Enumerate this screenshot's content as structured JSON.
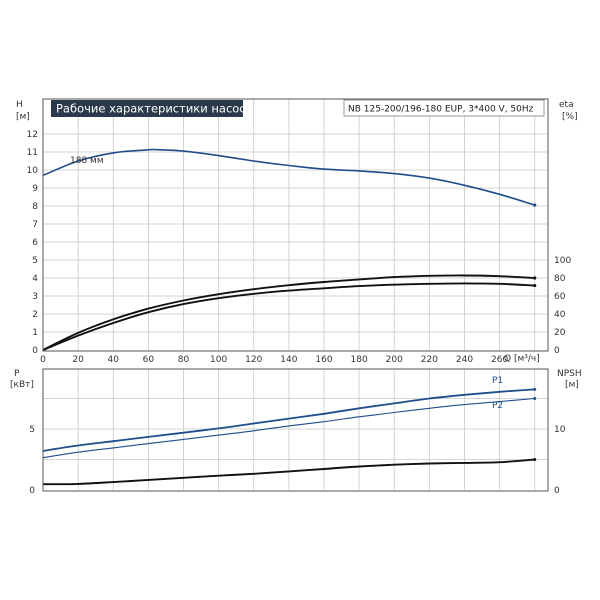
{
  "header": {
    "title": "Рабочие характеристики насоса",
    "model": "NB 125-200/196-180 EUP, 3*400 V, 50Hz"
  },
  "chart_data": [
    {
      "type": "line",
      "name": "head-efficiency",
      "left_axis": {
        "label": "H",
        "unit": "[м]",
        "ticks": [
          "0",
          "1",
          "2",
          "3",
          "4",
          "5",
          "6",
          "7",
          "8",
          "9",
          "10",
          "11",
          "12"
        ],
        "range": [
          0,
          13
        ]
      },
      "right_axis": {
        "label": "eta",
        "unit": "[%]",
        "ticks": [
          "0",
          "20",
          "40",
          "60",
          "80",
          "100"
        ],
        "range": [
          0,
          100
        ]
      },
      "x_axis": {
        "label": "Q [м³/ч]",
        "ticks": [
          "0",
          "20",
          "40",
          "60",
          "80",
          "100",
          "120",
          "140",
          "160",
          "180",
          "200",
          "220",
          "240",
          "260"
        ],
        "range": [
          0,
          290
        ]
      },
      "grid": true,
      "series": [
        {
          "id": "head",
          "name": "188 мм",
          "color": "#1f4e8c",
          "axis": "left",
          "x": [
            0,
            20,
            40,
            60,
            65,
            80,
            100,
            120,
            140,
            160,
            180,
            200,
            220,
            240,
            260,
            280
          ],
          "y": [
            9.7,
            10.5,
            10.95,
            11.12,
            11.13,
            11.05,
            10.8,
            10.5,
            10.25,
            10.05,
            9.95,
            9.8,
            9.55,
            9.15,
            8.65,
            8.05
          ]
        },
        {
          "id": "eta-upper",
          "color": "#111111",
          "axis": "left",
          "x": [
            0,
            20,
            40,
            60,
            80,
            100,
            120,
            140,
            160,
            180,
            200,
            220,
            240,
            260,
            280
          ],
          "y": [
            0,
            0.95,
            1.7,
            2.3,
            2.75,
            3.1,
            3.38,
            3.6,
            3.78,
            3.92,
            4.05,
            4.12,
            4.14,
            4.1,
            4.0
          ]
        },
        {
          "id": "eta-lower",
          "color": "#111111",
          "axis": "left",
          "x": [
            0,
            20,
            40,
            60,
            80,
            100,
            120,
            140,
            160,
            180,
            200,
            220,
            240,
            260,
            280
          ],
          "y": [
            0,
            0.8,
            1.5,
            2.1,
            2.55,
            2.88,
            3.12,
            3.3,
            3.43,
            3.55,
            3.63,
            3.68,
            3.7,
            3.68,
            3.58
          ]
        }
      ]
    },
    {
      "type": "line",
      "name": "power-npsh",
      "left_axis": {
        "label": "P",
        "unit": "[кВт]",
        "ticks": [
          "0",
          "5"
        ],
        "range": [
          0,
          8.5
        ]
      },
      "right_axis": {
        "label": "NPSH",
        "unit": "[м]",
        "ticks": [
          "0",
          "10"
        ],
        "range": [
          0,
          17
        ]
      },
      "x_axis": {
        "range": [
          0,
          290
        ]
      },
      "grid": true,
      "series": [
        {
          "id": "p1",
          "name": "P1",
          "color": "#1f4e8c",
          "axis": "left",
          "x": [
            0,
            20,
            40,
            60,
            80,
            100,
            120,
            140,
            160,
            180,
            200,
            220,
            240,
            260,
            280
          ],
          "y": [
            3.2,
            3.65,
            4.0,
            4.35,
            4.7,
            5.05,
            5.45,
            5.85,
            6.25,
            6.7,
            7.1,
            7.5,
            7.8,
            8.05,
            8.25
          ]
        },
        {
          "id": "p2",
          "name": "P2",
          "color": "#1f4e8c",
          "axis": "left",
          "x": [
            0,
            20,
            40,
            60,
            80,
            100,
            120,
            140,
            160,
            180,
            200,
            220,
            240,
            260,
            280
          ],
          "y": [
            2.65,
            3.1,
            3.45,
            3.8,
            4.15,
            4.5,
            4.85,
            5.25,
            5.6,
            6.0,
            6.35,
            6.7,
            7.0,
            7.25,
            7.5
          ]
        },
        {
          "id": "npsh",
          "color": "#111111",
          "axis": "right",
          "x": [
            0,
            20,
            40,
            60,
            80,
            100,
            120,
            140,
            160,
            180,
            200,
            220,
            240,
            260,
            280
          ],
          "y": [
            0.95,
            1.0,
            1.3,
            1.65,
            2.0,
            2.35,
            2.65,
            3.05,
            3.45,
            3.85,
            4.15,
            4.35,
            4.45,
            4.55,
            5.0
          ]
        }
      ]
    }
  ]
}
